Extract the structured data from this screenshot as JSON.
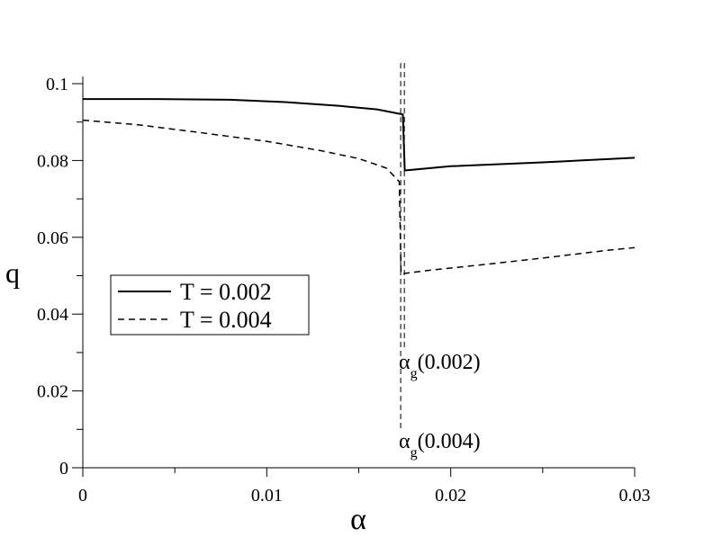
{
  "chart_data": {
    "type": "line",
    "xlabel": "α",
    "ylabel": "q",
    "xlim": [
      0,
      0.03
    ],
    "ylim": [
      0,
      0.1
    ],
    "x_ticks": [
      0,
      0.01,
      0.02,
      0.03
    ],
    "x_tick_labels": [
      "0",
      "0.01",
      "0.02",
      "0.03"
    ],
    "x_minor_ticks": [
      0.005,
      0.015,
      0.025
    ],
    "y_ticks": [
      0,
      0.02,
      0.04,
      0.06,
      0.08,
      0.1
    ],
    "y_tick_labels": [
      "0",
      "0.02",
      "0.04",
      "0.06",
      "0.08",
      "0.1"
    ],
    "y_minor_ticks": [
      0.01,
      0.03,
      0.05,
      0.07,
      0.09
    ],
    "grid": false,
    "legend_position": "middle-left",
    "series": [
      {
        "name": "T = 0.002",
        "style": "solid",
        "x": [
          0,
          0.004,
          0.008,
          0.011,
          0.014,
          0.016,
          0.0174,
          0.0175,
          0.02,
          0.025,
          0.03
        ],
        "y": [
          0.096,
          0.096,
          0.0958,
          0.0952,
          0.0942,
          0.0933,
          0.092,
          0.0774,
          0.0785,
          0.0795,
          0.0807
        ]
      },
      {
        "name": "T = 0.004",
        "style": "dashed",
        "x": [
          0,
          0.003,
          0.006,
          0.01,
          0.013,
          0.015,
          0.0165,
          0.0172,
          0.0173,
          0.019,
          0.022,
          0.025,
          0.0285,
          0.03
        ],
        "y": [
          0.0905,
          0.0893,
          0.0875,
          0.085,
          0.0825,
          0.0805,
          0.078,
          0.0745,
          0.0505,
          0.0515,
          0.053,
          0.0546,
          0.0566,
          0.0573
        ]
      }
    ],
    "vertical_lines": [
      {
        "x": 0.01748,
        "style": "dashed"
      },
      {
        "x": 0.01728,
        "style": "dashed"
      }
    ],
    "annotations": [
      {
        "symbol": "α",
        "sub": "g",
        "text": "(0.002)"
      },
      {
        "symbol": "α",
        "sub": "g",
        "text": "(0.004)"
      }
    ]
  }
}
